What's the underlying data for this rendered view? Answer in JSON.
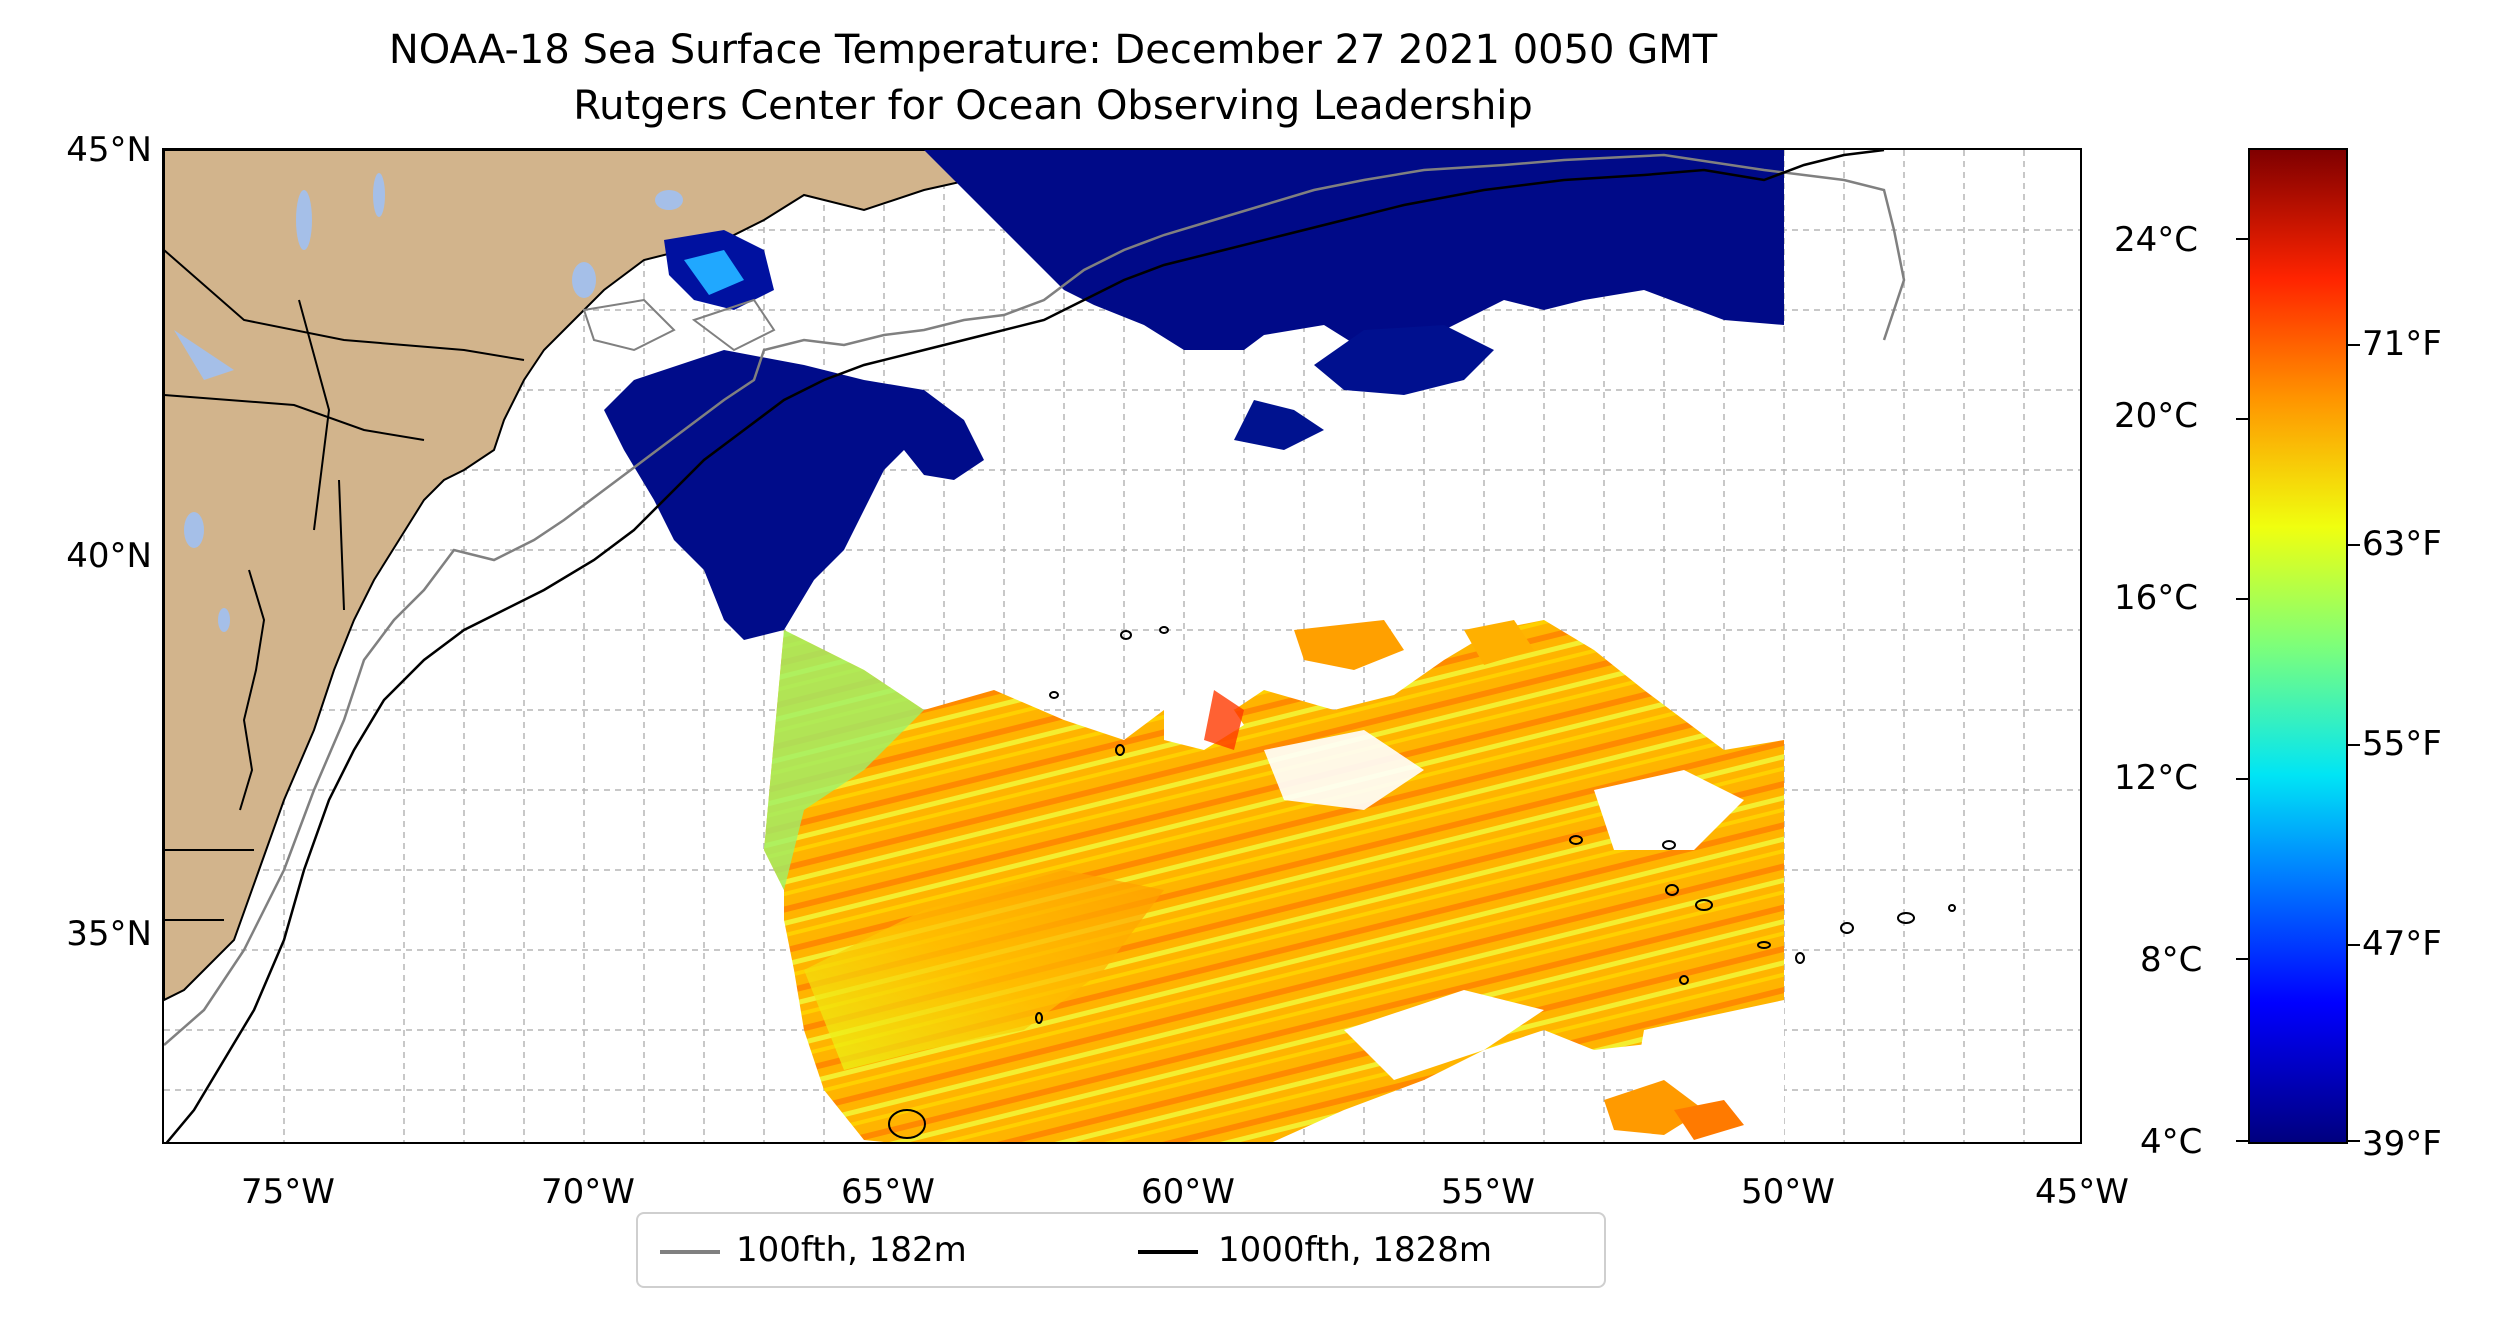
{
  "title": "NOAA-18 Sea Surface Temperature: December 27 2021 0050 GMT",
  "subtitle": "Rutgers Center for Ocean Observing Leadership",
  "map": {
    "extent": {
      "lon_min": -77,
      "lon_max": -45,
      "lat_min": 32.5,
      "lat_max": 45
    },
    "lat_labels": [
      "45°N",
      "40°N",
      "35°N"
    ],
    "lon_labels": [
      "75°W",
      "70°W",
      "65°W",
      "60°W",
      "55°W",
      "50°W",
      "45°W"
    ],
    "land_color": "#d2b48c",
    "water_body_color": "#a5bfe8",
    "grid": "on, dashed, light gray"
  },
  "colorbar": {
    "celsius_labels": [
      "24°C",
      "20°C",
      "16°C",
      "12°C",
      "8°C",
      "4°C"
    ],
    "fahrenheit_labels": [
      "71°F",
      "63°F",
      "55°F",
      "47°F",
      "39°F"
    ],
    "colormap": "jet",
    "celsius_range": [
      4,
      26
    ]
  },
  "legend": {
    "items": [
      {
        "label": "100fth, 182m",
        "color": "#808080"
      },
      {
        "label": "1000fth, 1828m",
        "color": "#000000"
      }
    ]
  }
}
